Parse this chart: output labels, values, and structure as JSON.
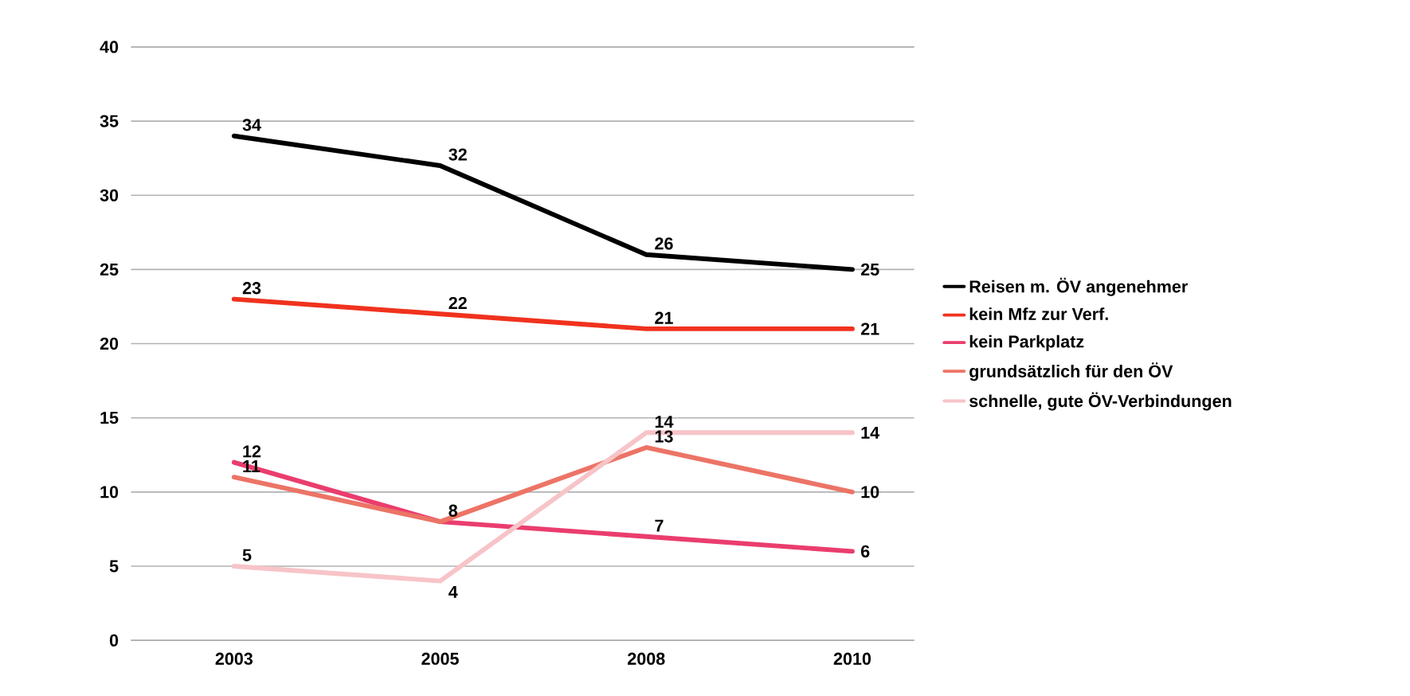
{
  "chart_data": {
    "type": "line",
    "categories": [
      "2003",
      "2005",
      "2008",
      "2010"
    ],
    "series": [
      {
        "name": "Reisen m. ÖV angenehmer",
        "color": "#000000",
        "values": [
          34,
          32,
          26,
          25
        ],
        "value_labels": [
          "34",
          "32",
          "26",
          "25"
        ]
      },
      {
        "name": "kein Mfz zur Verf.",
        "color": "#f0321e",
        "values": [
          23,
          22,
          21,
          21
        ],
        "value_labels": [
          "23",
          "22",
          "21",
          "21"
        ]
      },
      {
        "name": "kein Parkplatz",
        "color": "#ea3d6e",
        "values": [
          12,
          8,
          7,
          6
        ],
        "value_labels": [
          "12",
          "8",
          "7",
          "6"
        ]
      },
      {
        "name": "grundsätzlich für den ÖV",
        "color": "#ec7466",
        "values": [
          11,
          8,
          13,
          10
        ],
        "value_labels": [
          "11",
          null,
          "13",
          "10"
        ]
      },
      {
        "name": "schnelle, gute ÖV-Verbindungen",
        "color": "#f7c4c8",
        "values": [
          5,
          4,
          14,
          14
        ],
        "value_labels": [
          "5",
          "4",
          "14",
          "14"
        ]
      }
    ],
    "ylim": [
      0,
      40
    ],
    "yticks": [
      0,
      5,
      10,
      15,
      20,
      25,
      30,
      35,
      40
    ],
    "grid": "y",
    "legend": "right",
    "marker": "none",
    "line_style": "solid"
  }
}
